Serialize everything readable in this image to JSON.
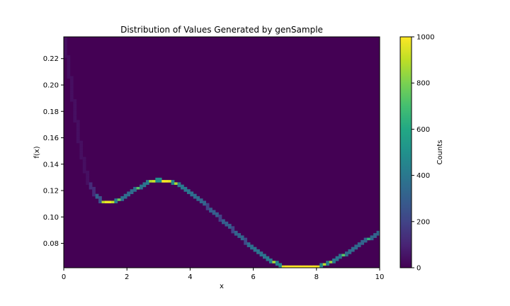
{
  "chart_data": {
    "type": "heatmap",
    "title": "Distribution of Values Generated by genSample",
    "xlabel": "x",
    "ylabel": "f(x)",
    "xlim": [
      0,
      10
    ],
    "ylim": [
      0.0615,
      0.2365
    ],
    "x_ticks": [
      0,
      2,
      4,
      6,
      8,
      10
    ],
    "y_ticks": [
      0.08,
      0.1,
      0.12,
      0.14,
      0.16,
      0.18,
      0.2,
      0.22
    ],
    "x_tick_labels": [
      "0",
      "2",
      "4",
      "6",
      "8",
      "10"
    ],
    "y_tick_labels": [
      "0.08",
      "0.10",
      "0.12",
      "0.14",
      "0.16",
      "0.18",
      "0.20",
      "0.22"
    ],
    "grid": false,
    "colormap": "viridis",
    "colorbar": {
      "label": "Counts",
      "range": [
        0,
        1000
      ],
      "ticks": [
        0,
        200,
        400,
        600,
        800,
        1000
      ],
      "tick_labels": [
        "0",
        "200",
        "400",
        "600",
        "800",
        "1000"
      ]
    },
    "bins": {
      "x": 100,
      "y": 100
    },
    "curve": {
      "x": [
        0.0,
        0.05,
        0.1,
        0.2,
        0.3,
        0.4,
        0.5,
        0.6,
        0.7,
        0.8,
        0.9,
        1.0,
        1.1,
        1.2,
        1.3,
        1.4,
        1.5,
        1.6,
        1.8,
        2.0,
        2.2,
        2.4,
        2.6,
        2.8,
        3.0,
        3.2,
        3.4,
        3.6,
        3.8,
        4.0,
        4.2,
        4.4,
        4.6,
        4.8,
        5.0,
        5.2,
        5.4,
        5.6,
        5.8,
        6.0,
        6.2,
        6.4,
        6.6,
        6.8,
        7.0,
        7.2,
        7.4,
        7.6,
        7.8,
        8.0,
        8.2,
        8.4,
        8.6,
        8.8,
        9.0,
        9.2,
        9.4,
        9.6,
        9.8,
        10.0
      ],
      "y": [
        0.2365,
        0.2365,
        0.2215,
        0.2055,
        0.188,
        0.172,
        0.157,
        0.144,
        0.134,
        0.126,
        0.121,
        0.117,
        0.114,
        0.112,
        0.1115,
        0.111,
        0.1112,
        0.1118,
        0.1135,
        0.1165,
        0.1195,
        0.1225,
        0.1255,
        0.1275,
        0.128,
        0.1278,
        0.1268,
        0.125,
        0.1222,
        0.1188,
        0.115,
        0.111,
        0.1066,
        0.1022,
        0.098,
        0.0935,
        0.089,
        0.0848,
        0.0805,
        0.0765,
        0.0728,
        0.0695,
        0.0665,
        0.0638,
        0.062,
        0.0615,
        0.0615,
        0.0615,
        0.0617,
        0.0625,
        0.0638,
        0.0655,
        0.0678,
        0.0705,
        0.0735,
        0.0765,
        0.0795,
        0.0825,
        0.0855,
        0.0885
      ],
      "counts": [
        300,
        300,
        300,
        240,
        220,
        210,
        200,
        190,
        200,
        300,
        450,
        550,
        700,
        850,
        950,
        1000,
        950,
        850,
        750,
        700,
        700,
        750,
        800,
        900,
        1000,
        1000,
        950,
        850,
        800,
        750,
        700,
        650,
        600,
        600,
        600,
        600,
        650,
        650,
        700,
        750,
        750,
        800,
        850,
        900,
        1000,
        1000,
        1000,
        1000,
        1000,
        1000,
        900,
        850,
        800,
        750,
        700,
        700,
        650,
        650,
        650,
        650
      ]
    },
    "background_count": 0
  }
}
